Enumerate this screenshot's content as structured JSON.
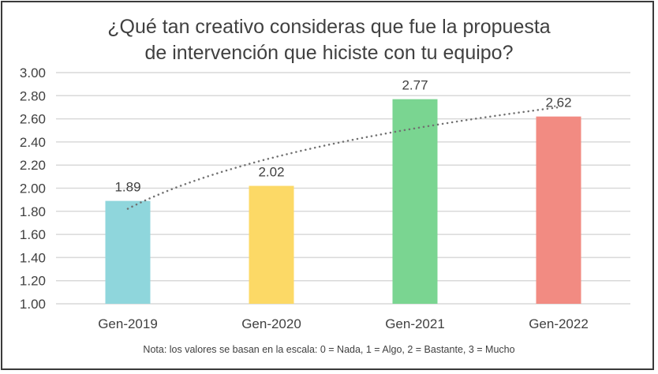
{
  "chart_data": {
    "type": "bar",
    "title_lines": [
      "¿Qué tan creativo consideras que fue la propuesta",
      "de intervención que hiciste con tu equipo?"
    ],
    "categories": [
      "Gen-2019",
      "Gen-2020",
      "Gen-2021",
      "Gen-2022"
    ],
    "values": [
      1.89,
      2.02,
      2.77,
      2.62
    ],
    "data_labels": [
      "1.89",
      "2.02",
      "2.77",
      "2.62"
    ],
    "colors": [
      "#8fd6dc",
      "#fcd966",
      "#7ad591",
      "#f28b82"
    ],
    "ylim": [
      1.0,
      3.0
    ],
    "yticks": [
      "1.00",
      "1.20",
      "1.40",
      "1.60",
      "1.80",
      "2.00",
      "2.20",
      "2.40",
      "2.60",
      "2.80",
      "3.00"
    ],
    "grid": true,
    "trendline": {
      "type": "logarithmic",
      "style": "dotted",
      "color": "#707070"
    },
    "xlabel": "",
    "ylabel": "",
    "note": "Nota: los valores se basan en la escala: 0 = Nada, 1 = Algo, 2 = Bastante, 3 = Mucho"
  }
}
